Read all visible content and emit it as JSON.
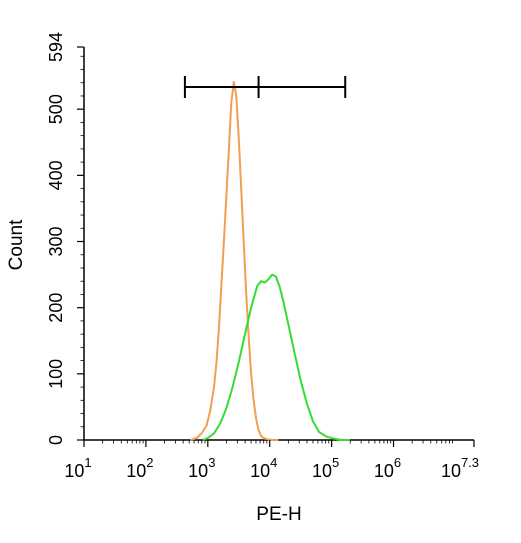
{
  "chart_data": {
    "type": "line",
    "chart_kind": "flow-cytometry-histogram",
    "title": "",
    "xlabel": "PE-H",
    "ylabel": "Count",
    "xscale": "log",
    "xlim": [
      1,
      7.3
    ],
    "ylim": [
      0,
      594
    ],
    "grid": false,
    "legend": "none",
    "x_ticks": [
      {
        "base": "10",
        "exp": "1",
        "value": 1
      },
      {
        "base": "10",
        "exp": "2",
        "value": 2
      },
      {
        "base": "10",
        "exp": "3",
        "value": 3
      },
      {
        "base": "10",
        "exp": "4",
        "value": 4
      },
      {
        "base": "10",
        "exp": "5",
        "value": 5
      },
      {
        "base": "10",
        "exp": "6",
        "value": 6
      },
      {
        "base": "10",
        "exp": "7.3",
        "value": 7.3
      }
    ],
    "y_ticks": [
      "0",
      "100",
      "200",
      "300",
      "400",
      "500",
      "594"
    ],
    "gate": {
      "low": 2.63,
      "mid": 3.82,
      "high": 5.22
    },
    "series": [
      {
        "color": "#f0a050",
        "x": [
          2.72,
          2.82,
          2.9,
          2.98,
          3.04,
          3.1,
          3.14,
          3.18,
          3.22,
          3.26,
          3.3,
          3.34,
          3.38,
          3.42,
          3.46,
          3.5,
          3.54,
          3.58,
          3.62,
          3.66,
          3.7,
          3.74,
          3.78,
          3.82,
          3.86,
          3.9,
          3.96,
          4.04,
          4.14
        ],
        "y": [
          0,
          3,
          10,
          22,
          45,
          80,
          118,
          170,
          235,
          300,
          370,
          440,
          510,
          541,
          520,
          455,
          380,
          300,
          222,
          155,
          100,
          60,
          32,
          15,
          6,
          3,
          1,
          0,
          0
        ]
      },
      {
        "color": "#33dd33",
        "x": [
          2.92,
          3.0,
          3.1,
          3.2,
          3.3,
          3.4,
          3.5,
          3.6,
          3.7,
          3.8,
          3.86,
          3.92,
          3.98,
          4.04,
          4.1,
          4.16,
          4.22,
          4.3,
          4.4,
          4.5,
          4.6,
          4.7,
          4.8,
          4.92,
          5.04,
          5.16,
          5.3
        ],
        "y": [
          0,
          3,
          10,
          25,
          48,
          80,
          118,
          160,
          200,
          233,
          240,
          238,
          243,
          250,
          247,
          232,
          210,
          175,
          132,
          90,
          55,
          28,
          12,
          5,
          2,
          0,
          0
        ]
      }
    ]
  }
}
